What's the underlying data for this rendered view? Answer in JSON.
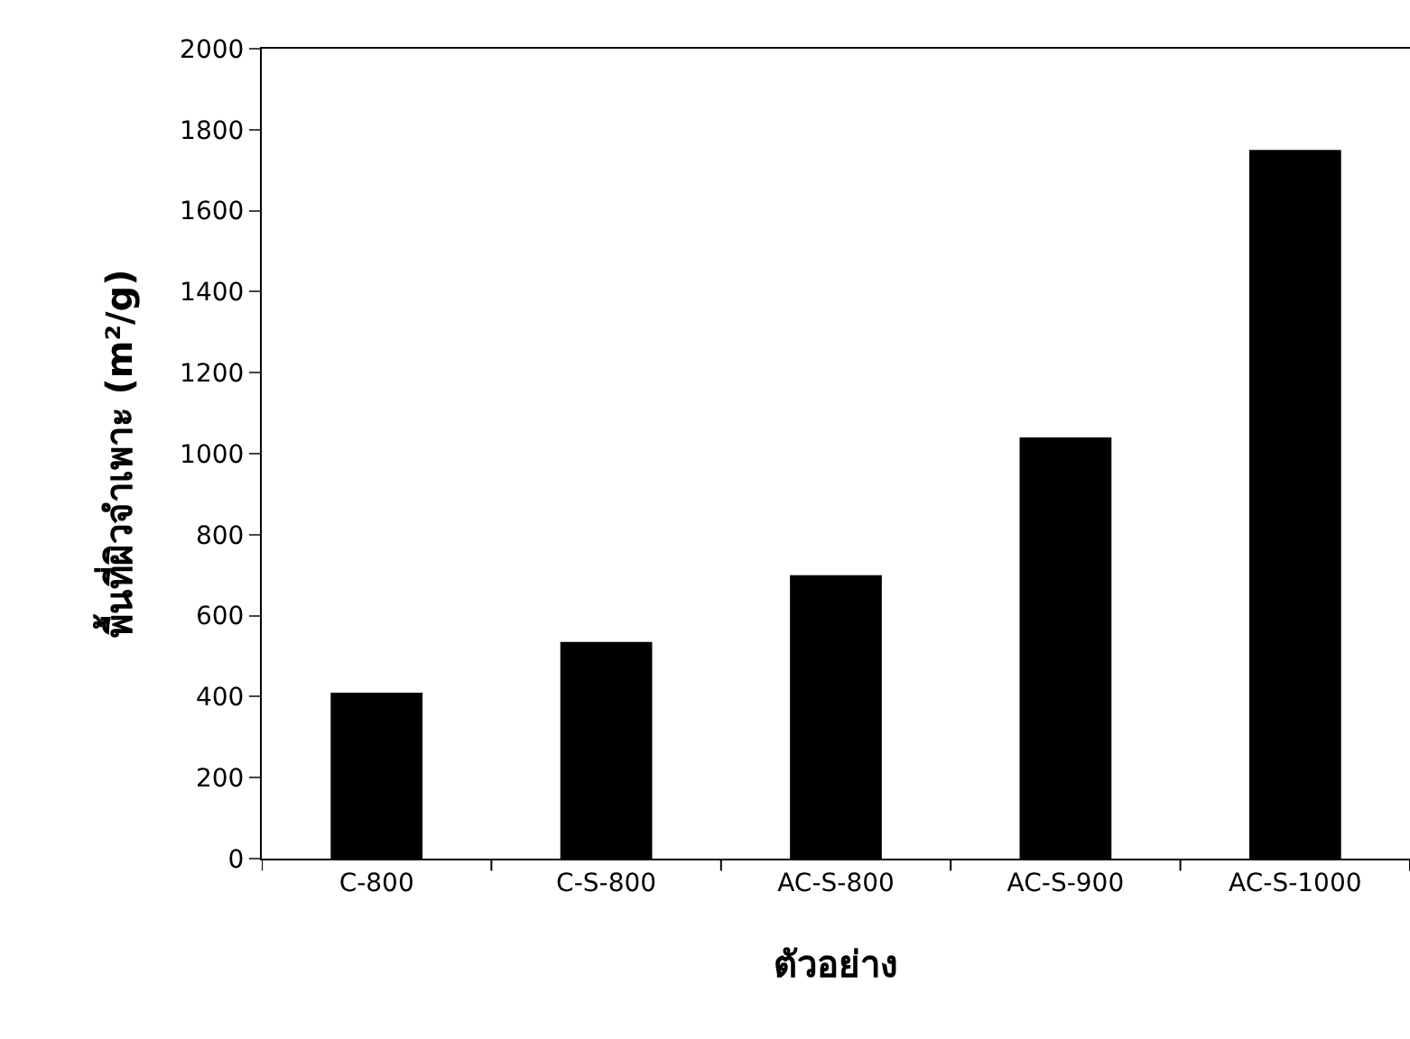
{
  "chart_data": {
    "type": "bar",
    "xlabel": "ตัวอย่าง",
    "ylabel": "พื้นที่ผิวจำเพาะ (m²/g)",
    "categories": [
      "C-800",
      "C-S-800",
      "AC-S-800",
      "AC-S-900",
      "AC-S-1000"
    ],
    "values": [
      410,
      535,
      700,
      1040,
      1750
    ],
    "color": "#000000",
    "ylim": [
      0,
      2000
    ],
    "yticks": [
      0,
      200,
      400,
      600,
      800,
      1000,
      1200,
      1400,
      1600,
      1800,
      2000
    ]
  }
}
